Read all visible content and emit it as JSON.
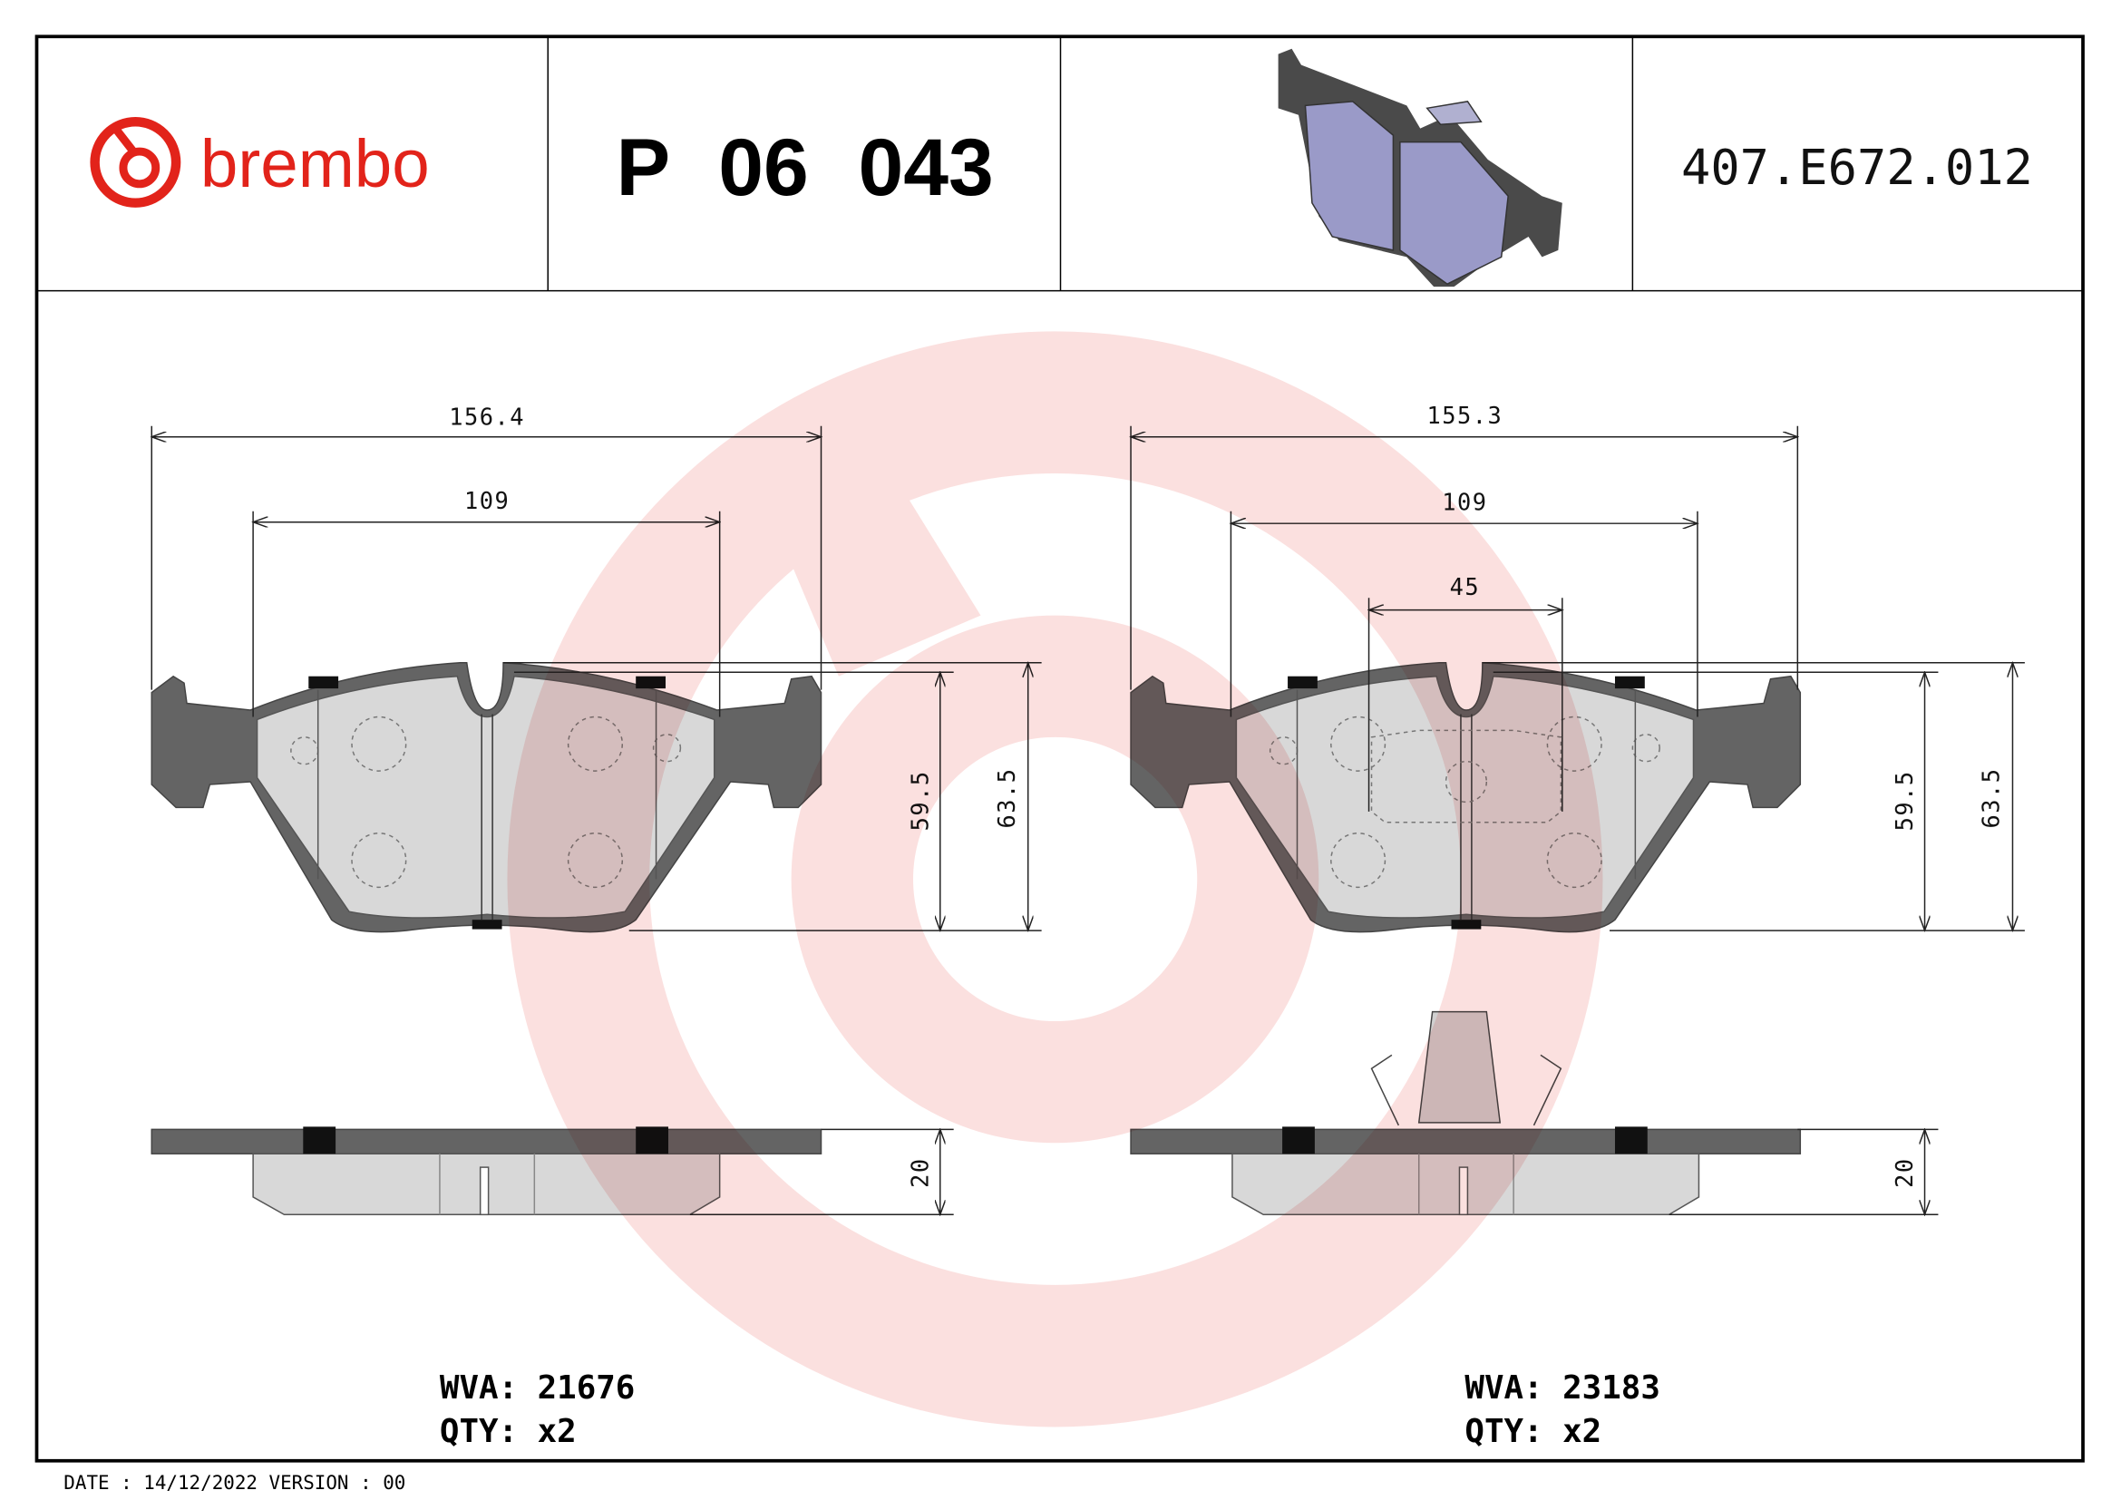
{
  "header": {
    "brand": "brembo",
    "part_number": "P 06 043",
    "reference": "407.E672.012",
    "brand_color": "#e2231a"
  },
  "left_pad": {
    "dims": {
      "overall_width": "156.4",
      "inner_width": "109",
      "height_inner": "59.5",
      "height_outer": "63.5",
      "thickness": "20"
    },
    "wva": "WVA: 21676",
    "qty": "QTY: x2"
  },
  "right_pad": {
    "dims": {
      "overall_width": "155.3",
      "inner_width": "109",
      "center_width": "45",
      "height_inner": "59.5",
      "height_outer": "63.5",
      "thickness": "20"
    },
    "wva": "WVA: 23183",
    "qty": "QTY: x2"
  },
  "footer": {
    "date_version": "DATE : 14/12/2022 VERSION : 00"
  }
}
